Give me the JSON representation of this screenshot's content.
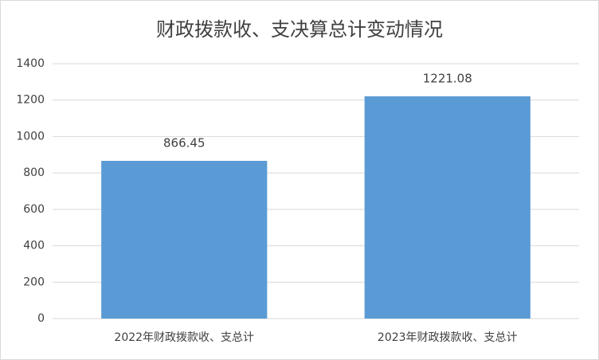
{
  "chart_data": {
    "type": "bar",
    "title": "财政拨款收、支决算总计变动情况",
    "categories": [
      "2022年财政拨款收、支总计",
      "2023年财政拨款收、支总计"
    ],
    "values": [
      866.45,
      1221.08
    ],
    "color": "#5b9bd5",
    "ylim": [
      0,
      1400
    ],
    "yticks": [
      0,
      200,
      400,
      600,
      800,
      1000,
      1200,
      1400
    ],
    "grid": true
  }
}
